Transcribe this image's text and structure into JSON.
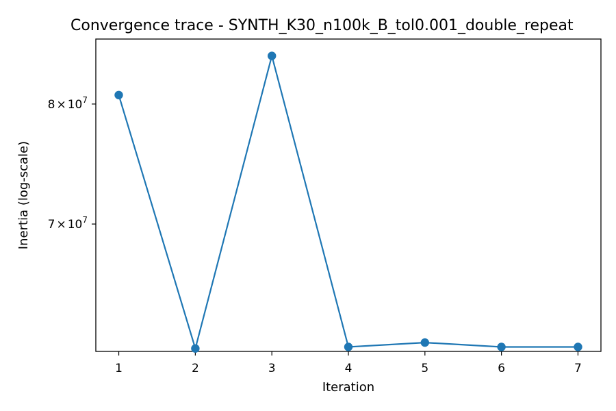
{
  "chart_data": {
    "type": "line",
    "title": "Convergence trace - SYNTH_K30_n100k_B_tol0.001_double_repeat",
    "xlabel": "Iteration",
    "ylabel": "Inertia (log-scale)",
    "yscale": "log",
    "x": [
      1,
      2,
      3,
      4,
      5,
      6,
      7
    ],
    "series": [
      {
        "values": [
          80800000,
          60950000,
          84400000,
          61050000,
          61350000,
          61050000,
          61050000
        ],
        "color": "#1f77b4",
        "marker": "circle"
      }
    ],
    "xlim": [
      0.7,
      7.3
    ],
    "ylim": [
      60750000,
      86000000
    ],
    "xticks": [
      "1",
      "2",
      "3",
      "4",
      "5",
      "6",
      "7"
    ],
    "yticks": [
      {
        "value": 70000000,
        "mantissa": "7",
        "base": "10",
        "exponent": "7"
      },
      {
        "value": 80000000,
        "mantissa": "8",
        "base": "10",
        "exponent": "7"
      }
    ],
    "grid": false,
    "legend": "none"
  }
}
